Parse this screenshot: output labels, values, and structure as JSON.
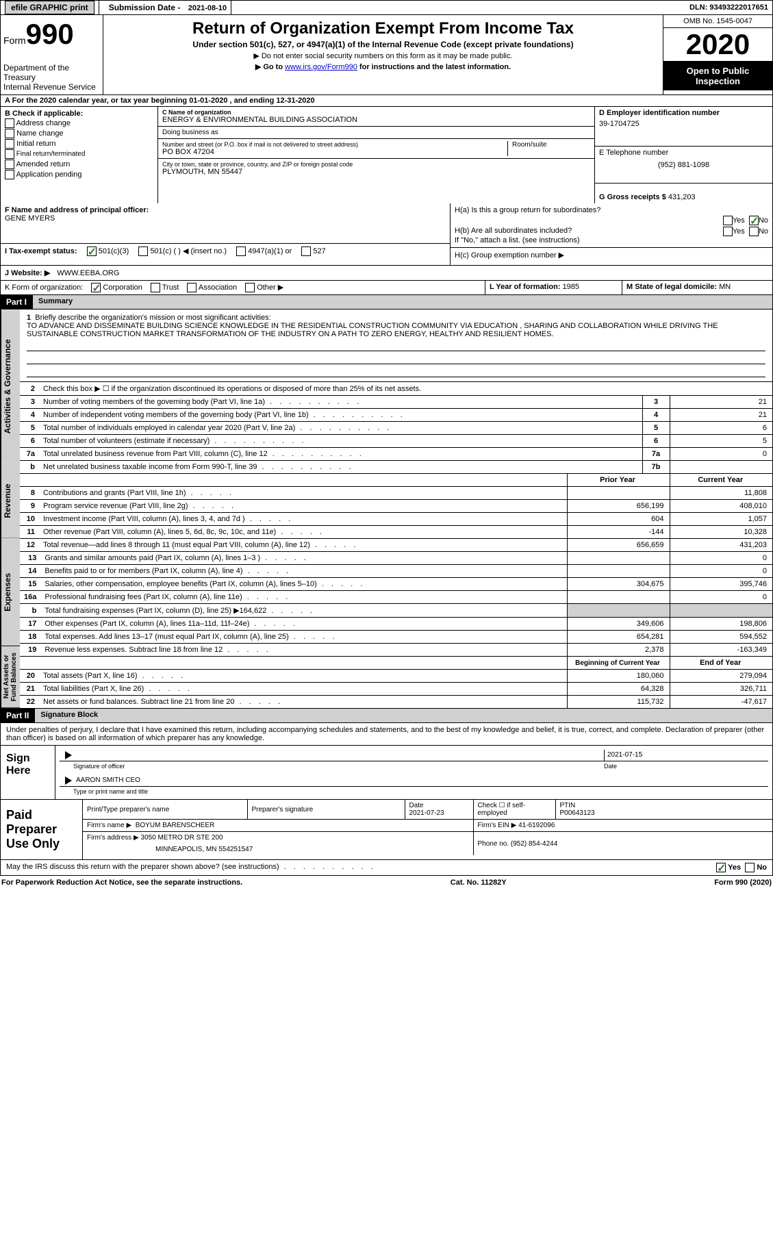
{
  "topbar": {
    "efile": "efile GRAPHIC print",
    "submission_label": "Submission Date - ",
    "submission_date": "2021-08-10",
    "dln_label": "DLN: ",
    "dln": "93493222017651"
  },
  "header": {
    "form_word": "Form",
    "form_num": "990",
    "dept": "Department of the Treasury\nInternal Revenue Service",
    "title": "Return of Organization Exempt From Income Tax",
    "subtitle": "Under section 501(c), 527, or 4947(a)(1) of the Internal Revenue Code (except private foundations)",
    "note1": "▶ Do not enter social security numbers on this form as it may be made public.",
    "note2_pre": "▶ Go to ",
    "note2_link": "www.irs.gov/Form990",
    "note2_post": " for instructions and the latest information.",
    "omb": "OMB No. 1545-0047",
    "year": "2020",
    "open": "Open to Public Inspection"
  },
  "section_a": "A For the 2020 calendar year, or tax year beginning 01-01-2020    , and ending 12-31-2020",
  "col_b": {
    "title": "B Check if applicable:",
    "items": [
      "Address change",
      "Name change",
      "Initial return",
      "Final return/terminated",
      "Amended return",
      "Application pending"
    ]
  },
  "col_c": {
    "name_label": "C Name of organization",
    "name": "ENERGY & ENVIRONMENTAL BUILDING ASSOCIATION",
    "dba_label": "Doing business as",
    "dba": "",
    "street_label": "Number and street (or P.O. box if mail is not delivered to street address)",
    "street": "PO BOX 47204",
    "room_label": "Room/suite",
    "city_label": "City or town, state or province, country, and ZIP or foreign postal code",
    "city": "PLYMOUTH, MN  55447"
  },
  "col_d": {
    "ein_label": "D Employer identification number",
    "ein": "39-1704725",
    "tel_label": "E Telephone number",
    "tel": "(952) 881-1098",
    "gross_label": "G Gross receipts $ ",
    "gross": "431,203"
  },
  "officer": {
    "label": "F  Name and address of principal officer:",
    "name": "GENE MYERS"
  },
  "h_block": {
    "ha": "H(a)  Is this a group return for subordinates?",
    "hb": "H(b)  Are all subordinates included?",
    "hb_note": "If \"No,\" attach a list. (see instructions)",
    "hc": "H(c)  Group exemption number ▶",
    "yes": "Yes",
    "no": "No"
  },
  "status": {
    "label": "I   Tax-exempt status:",
    "o1": "501(c)(3)",
    "o2": "501(c) (  ) ◀ (insert no.)",
    "o3": "4947(a)(1) or",
    "o4": "527"
  },
  "website": {
    "label": "J   Website: ▶",
    "value": "WWW.EEBA.ORG"
  },
  "k_org": {
    "label": "K Form of organization:",
    "o1": "Corporation",
    "o2": "Trust",
    "o3": "Association",
    "o4": "Other ▶"
  },
  "lm": {
    "l_label": "L Year of formation: ",
    "l_val": "1985",
    "m_label": "M State of legal domicile: ",
    "m_val": "MN"
  },
  "part1": {
    "num": "Part I",
    "title": "Summary",
    "vtab1": "Activities & Governance",
    "vtab2": "Revenue",
    "vtab3": "Expenses",
    "vtab4": "Net Assets or Fund Balances",
    "line1_label": "Briefly describe the organization's mission or most significant activities:",
    "mission": "TO ADVANCE AND DISSEMINATE BUILDING SCIENCE KNOWLEDGE IN THE RESIDENTIAL CONSTRUCTION COMMUNITY VIA EDUCATION , SHARING AND COLLABORATION WHILE DRIVING THE SUSTAINABLE CONSTRUCTION MARKET TRANSFORMATION OF THE INDUSTRY ON A PATH TO ZERO ENERGY, HEALTHY AND RESILIENT HOMES.",
    "line2": "Check this box ▶ ☐  if the organization discontinued its operations or disposed of more than 25% of its net assets.",
    "rows_ag": [
      {
        "n": "3",
        "t": "Number of voting members of the governing body (Part VI, line 1a)",
        "v": "21"
      },
      {
        "n": "4",
        "t": "Number of independent voting members of the governing body (Part VI, line 1b)",
        "v": "21"
      },
      {
        "n": "5",
        "t": "Total number of individuals employed in calendar year 2020 (Part V, line 2a)",
        "v": "6"
      },
      {
        "n": "6",
        "t": "Total number of volunteers (estimate if necessary)",
        "v": "5"
      },
      {
        "n": "7a",
        "t": "Total unrelated business revenue from Part VIII, column (C), line 12",
        "v": "0"
      },
      {
        "n": "b",
        "t": "Net unrelated business taxable income from Form 990-T, line 39",
        "v": "",
        "num": "7b"
      }
    ],
    "py_hdr": "Prior Year",
    "cy_hdr": "Current Year",
    "rows_rev": [
      {
        "n": "8",
        "t": "Contributions and grants (Part VIII, line 1h)",
        "py": "",
        "cy": "11,808"
      },
      {
        "n": "9",
        "t": "Program service revenue (Part VIII, line 2g)",
        "py": "656,199",
        "cy": "408,010"
      },
      {
        "n": "10",
        "t": "Investment income (Part VIII, column (A), lines 3, 4, and 7d )",
        "py": "604",
        "cy": "1,057"
      },
      {
        "n": "11",
        "t": "Other revenue (Part VIII, column (A), lines 5, 6d, 8c, 9c, 10c, and 11e)",
        "py": "-144",
        "cy": "10,328"
      },
      {
        "n": "12",
        "t": "Total revenue—add lines 8 through 11 (must equal Part VIII, column (A), line 12)",
        "py": "656,659",
        "cy": "431,203"
      }
    ],
    "rows_exp": [
      {
        "n": "13",
        "t": "Grants and similar amounts paid (Part IX, column (A), lines 1–3 )",
        "py": "",
        "cy": "0"
      },
      {
        "n": "14",
        "t": "Benefits paid to or for members (Part IX, column (A), line 4)",
        "py": "",
        "cy": "0"
      },
      {
        "n": "15",
        "t": "Salaries, other compensation, employee benefits (Part IX, column (A), lines 5–10)",
        "py": "304,675",
        "cy": "395,746"
      },
      {
        "n": "16a",
        "t": "Professional fundraising fees (Part IX, column (A), line 11e)",
        "py": "",
        "cy": "0"
      },
      {
        "n": "b",
        "t": "Total fundraising expenses (Part IX, column (D), line 25) ▶164,622",
        "py": "GRAY",
        "cy": "GRAY"
      },
      {
        "n": "17",
        "t": "Other expenses (Part IX, column (A), lines 11a–11d, 11f–24e)",
        "py": "349,606",
        "cy": "198,806"
      },
      {
        "n": "18",
        "t": "Total expenses. Add lines 13–17 (must equal Part IX, column (A), line 25)",
        "py": "654,281",
        "cy": "594,552"
      },
      {
        "n": "19",
        "t": "Revenue less expenses. Subtract line 18 from line 12",
        "py": "2,378",
        "cy": "-163,349"
      }
    ],
    "bcy_hdr": "Beginning of Current Year",
    "ecy_hdr": "End of Year",
    "rows_net": [
      {
        "n": "20",
        "t": "Total assets (Part X, line 16)",
        "py": "180,060",
        "cy": "279,094"
      },
      {
        "n": "21",
        "t": "Total liabilities (Part X, line 26)",
        "py": "64,328",
        "cy": "326,711"
      },
      {
        "n": "22",
        "t": "Net assets or fund balances. Subtract line 21 from line 20",
        "py": "115,732",
        "cy": "-47,617"
      }
    ]
  },
  "part2": {
    "num": "Part II",
    "title": "Signature Block",
    "decl": "Under penalties of perjury, I declare that I have examined this return, including accompanying schedules and statements, and to the best of my knowledge and belief, it is true, correct, and complete. Declaration of preparer (other than officer) is based on all information of which preparer has any knowledge.",
    "sign_here": "Sign Here",
    "sig_officer": "Signature of officer",
    "sig_date": "2021-07-15",
    "date_label": "Date",
    "name_title": "AARON SMITH CEO",
    "name_title_label": "Type or print name and title",
    "paid_prep": "Paid Preparer Use Only",
    "pt_name_label": "Print/Type preparer's name",
    "pt_name": "",
    "pt_sig_label": "Preparer's signature",
    "pt_date_label": "Date",
    "pt_date": "2021-07-23",
    "pt_check": "Check ☐ if self-employed",
    "ptin_label": "PTIN",
    "ptin": "P00643123",
    "firm_name_label": "Firm's name      ▶",
    "firm_name": "BOYUM BARENSCHEER",
    "firm_ein_label": "Firm's EIN ▶",
    "firm_ein": "41-6192096",
    "firm_addr_label": "Firm's address ▶",
    "firm_addr1": "3050 METRO DR STE 200",
    "firm_addr2": "MINNEAPOLIS, MN  554251547",
    "phone_label": "Phone no. ",
    "phone": "(952) 854-4244",
    "discuss": "May the IRS discuss this return with the preparer shown above? (see instructions)",
    "yes": "Yes",
    "no": "No"
  },
  "footer": {
    "left": "For Paperwork Reduction Act Notice, see the separate instructions.",
    "mid": "Cat. No. 11282Y",
    "right": "Form 990 (2020)"
  },
  "colors": {
    "link": "#0000cc",
    "check": "#3a7a3a",
    "gray": "#d0d0d0",
    "black": "#000000"
  }
}
